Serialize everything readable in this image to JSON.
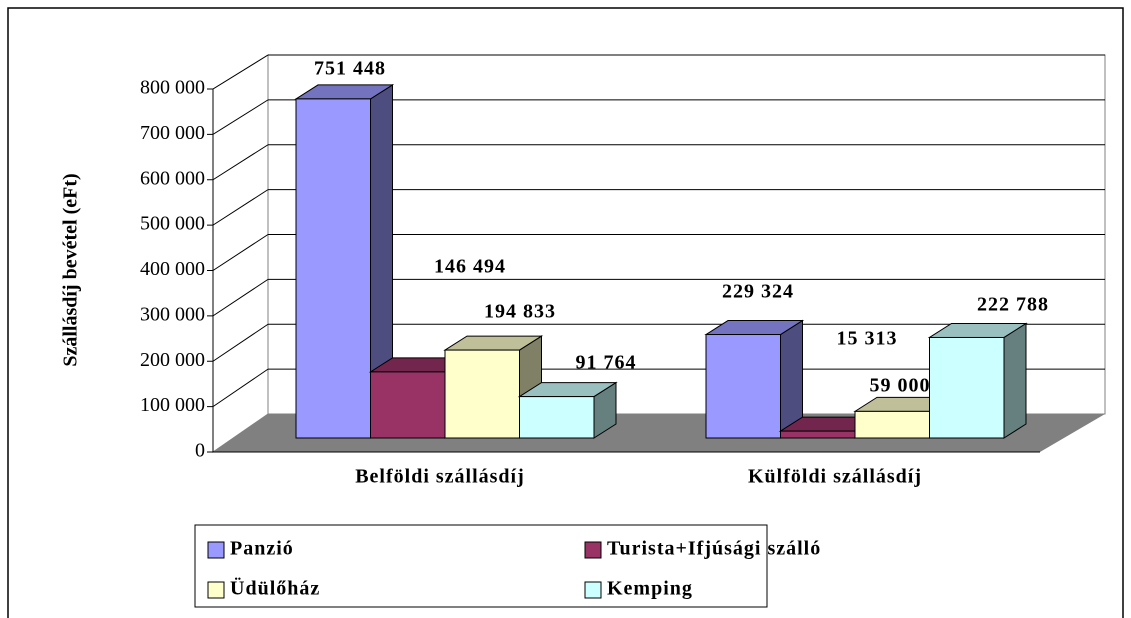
{
  "chart_data": {
    "type": "bar3d",
    "y_label": "Szállásdíj bevétel (eFt)",
    "categories": [
      "Belföldi szállásdíj",
      "Külföldi szállásdíj"
    ],
    "series": [
      {
        "name": "Panzió",
        "color": "#9999ff",
        "values": [
          751448,
          229324
        ],
        "value_labels": [
          "751 448",
          "229 324"
        ]
      },
      {
        "name": "Turista+Ifjúsági szálló",
        "color": "#993366",
        "values": [
          146494,
          15313
        ],
        "value_labels": [
          "146 494",
          "15 313"
        ]
      },
      {
        "name": "Üdülőház",
        "color": "#ffffcc",
        "values": [
          194833,
          59000
        ],
        "value_labels": [
          "194 833",
          "59 000"
        ]
      },
      {
        "name": "Kemping",
        "color": "#ccffff",
        "values": [
          91764,
          222788
        ],
        "value_labels": [
          "91 764",
          "222 788"
        ]
      }
    ],
    "ylim": [
      0,
      800000
    ],
    "yticks": [
      0,
      {
        "value": 100000,
        "label": "100 000"
      },
      {
        "value": 200000,
        "label": "200 000"
      },
      {
        "value": 300000,
        "label": "300 000"
      },
      {
        "value": 400000,
        "label": "400 000"
      },
      {
        "value": 500000,
        "label": "500 000"
      },
      {
        "value": 600000,
        "label": "600 000"
      },
      {
        "value": 700000,
        "label": "700 000"
      },
      {
        "value": 800000,
        "label": "800 000"
      }
    ],
    "grid": true,
    "legend": "bottom"
  }
}
